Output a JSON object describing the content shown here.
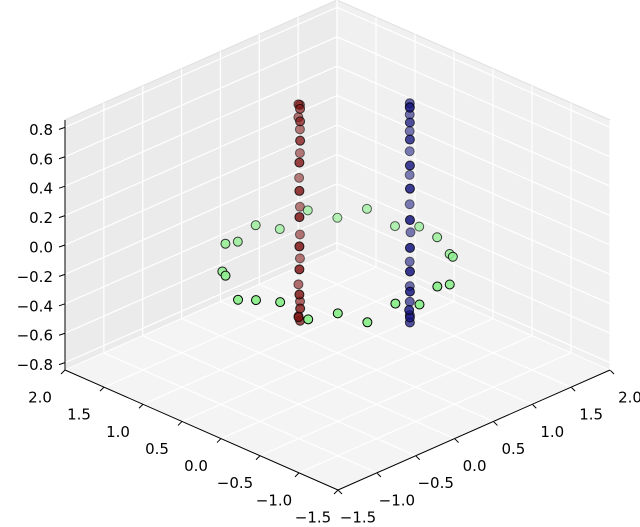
{
  "chart_data": {
    "type": "scatter3d",
    "xlim": [
      -1.5,
      2.0
    ],
    "ylim": [
      -1.5,
      2.0
    ],
    "zlim": [
      -0.85,
      0.85
    ],
    "xticks": [
      {
        "value": -1.5,
        "label": "−1.5"
      },
      {
        "value": -1.0,
        "label": "−1.0"
      },
      {
        "value": -0.5,
        "label": "−0.5"
      },
      {
        "value": 0.0,
        "label": "0.0"
      },
      {
        "value": 0.5,
        "label": "0.5"
      },
      {
        "value": 1.0,
        "label": "1.0"
      },
      {
        "value": 1.5,
        "label": "1.5"
      },
      {
        "value": 2.0,
        "label": "2.0"
      }
    ],
    "yticks": [
      {
        "value": -1.5,
        "label": "−1.5"
      },
      {
        "value": -1.0,
        "label": "−1.0"
      },
      {
        "value": -0.5,
        "label": "−0.5"
      },
      {
        "value": 0.0,
        "label": "0.0"
      },
      {
        "value": 0.5,
        "label": "0.5"
      },
      {
        "value": 1.0,
        "label": "1.0"
      },
      {
        "value": 1.5,
        "label": "1.5"
      },
      {
        "value": 2.0,
        "label": "2.0"
      }
    ],
    "zticks": [
      {
        "value": -0.8,
        "label": "−0.8"
      },
      {
        "value": -0.6,
        "label": "−0.6"
      },
      {
        "value": -0.4,
        "label": "−0.4"
      },
      {
        "value": -0.2,
        "label": "−0.2"
      },
      {
        "value": 0.0,
        "label": "0.0"
      },
      {
        "value": 0.2,
        "label": "0.2"
      },
      {
        "value": 0.4,
        "label": "0.4"
      },
      {
        "value": 0.6,
        "label": "0.6"
      },
      {
        "value": 0.8,
        "label": "0.8"
      }
    ],
    "grid": true,
    "series": [
      {
        "color": "#801515",
        "x": [
          0.77,
          0.75,
          0.71,
          0.62,
          0.53,
          0.4,
          0.28,
          0.14,
          0.03,
          -0.08,
          -0.15,
          -0.21,
          -0.23,
          -0.2,
          -0.16,
          -0.08,
          0.02,
          0.15,
          0.27,
          0.41,
          0.52,
          0.63,
          0.7,
          0.76
        ],
        "y": [
          1.26,
          1.23,
          1.19,
          1.12,
          1.01,
          0.9,
          0.76,
          0.62,
          0.51,
          0.41,
          0.34,
          0.28,
          0.26,
          0.29,
          0.33,
          0.4,
          0.52,
          0.63,
          0.77,
          0.89,
          1.02,
          1.11,
          1.18,
          1.24
        ],
        "z": [
          0.1,
          0.28,
          0.46,
          0.58,
          0.71,
          0.77,
          0.8,
          0.78,
          0.7,
          0.6,
          0.44,
          0.29,
          0.1,
          -0.07,
          -0.26,
          -0.39,
          -0.5,
          -0.58,
          -0.61,
          -0.57,
          -0.51,
          -0.38,
          -0.25,
          -0.09
        ]
      },
      {
        "color": "#15157f",
        "x": [
          1.48,
          1.46,
          1.41,
          1.33,
          1.23,
          1.11,
          0.98,
          0.85,
          0.73,
          0.63,
          0.55,
          0.5,
          0.48,
          0.5,
          0.55,
          0.62,
          0.73,
          0.85,
          0.98,
          1.11,
          1.23,
          1.33,
          1.42,
          1.46
        ],
        "y": [
          0.55,
          0.53,
          0.48,
          0.4,
          0.3,
          0.18,
          0.05,
          -0.08,
          -0.2,
          -0.3,
          -0.38,
          -0.43,
          -0.45,
          -0.43,
          -0.38,
          -0.3,
          -0.2,
          -0.08,
          0.05,
          0.18,
          0.3,
          0.4,
          0.48,
          0.53
        ],
        "z": [
          0.12,
          0.29,
          0.45,
          0.6,
          0.7,
          0.78,
          0.81,
          0.77,
          0.71,
          0.58,
          0.46,
          0.27,
          0.09,
          -0.08,
          -0.24,
          -0.4,
          -0.5,
          -0.59,
          -0.6,
          -0.57,
          -0.52,
          -0.4,
          -0.24,
          -0.07
        ]
      },
      {
        "color": "#90ee90",
        "x": [
          1.0,
          0.96,
          0.86,
          0.69,
          0.48,
          0.22,
          -0.05,
          -0.32,
          -0.58,
          -0.79,
          -0.96,
          -1.06,
          -1.1,
          -1.06,
          -0.96,
          -0.79,
          -0.58,
          -0.32,
          -0.05,
          0.22,
          0.48,
          0.69,
          0.86,
          0.96
        ],
        "y": [
          -0.05,
          0.22,
          0.48,
          0.69,
          0.86,
          0.96,
          1.0,
          0.96,
          0.86,
          0.69,
          0.48,
          0.22,
          -0.05,
          -0.32,
          -0.58,
          -0.79,
          -0.96,
          -1.06,
          -1.1,
          -1.06,
          -0.96,
          -0.79,
          -0.58,
          -0.32
        ],
        "z": [
          0.02,
          -0.03,
          0.05,
          -0.02,
          0.04,
          -0.05,
          0.03,
          -0.01,
          0.06,
          -0.04,
          0.02,
          -0.06,
          0.01,
          0.05,
          -0.03,
          0.02,
          -0.05,
          0.04,
          -0.02,
          0.03,
          -0.04,
          0.06,
          -0.01,
          0.02
        ]
      }
    ]
  }
}
